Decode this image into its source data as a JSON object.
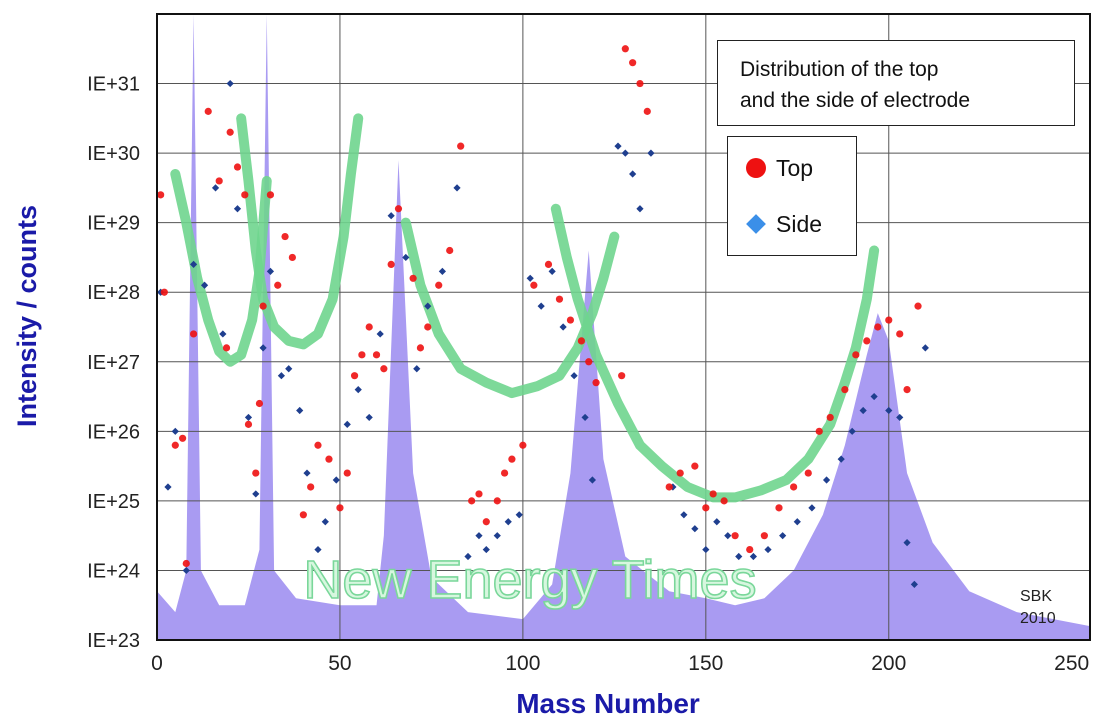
{
  "chart_data": {
    "type": "scatter",
    "title": "Distribution of the top and the side of electrode",
    "title_lines": [
      "Distribution of the top",
      "and the side of electrode"
    ],
    "xlabel": "Mass Number",
    "ylabel": "Intensity / counts",
    "xlim": [
      0,
      255
    ],
    "ylim_log10": [
      23,
      32
    ],
    "log_scale_y": true,
    "grid": true,
    "legend_placement": "top-right",
    "x_ticks": [
      "0",
      "50",
      "100",
      "150",
      "200",
      "250"
    ],
    "y_ticks": [
      "IE+23",
      "IE+24",
      "IE+25",
      "IE+26",
      "IE+27",
      "IE+28",
      "IE+29",
      "IE+30",
      "IE+31"
    ],
    "watermark": "New Energy Times",
    "credit": [
      "SBK",
      "2010"
    ],
    "colors": {
      "top": "#ee1111",
      "side": "#1f3f8f",
      "side_legend": "#3b8fe8",
      "fill": "#a99bf2",
      "curve": "#6fd58e",
      "axis_label": "#1a1aa8"
    },
    "series": [
      {
        "name": "Top",
        "marker": "circle",
        "points": [
          [
            1,
            29.4
          ],
          [
            2,
            28
          ],
          [
            5,
            25.8
          ],
          [
            7,
            25.9
          ],
          [
            8,
            24.1
          ],
          [
            10,
            27.4
          ],
          [
            14,
            30.6
          ],
          [
            17,
            29.6
          ],
          [
            19,
            27.2
          ],
          [
            20,
            30.3
          ],
          [
            22,
            29.8
          ],
          [
            24,
            29.4
          ],
          [
            25,
            26.1
          ],
          [
            27,
            25.4
          ],
          [
            28,
            26.4
          ],
          [
            29,
            27.8
          ],
          [
            31,
            29.4
          ],
          [
            33,
            28.1
          ],
          [
            35,
            28.8
          ],
          [
            37,
            28.5
          ],
          [
            40,
            24.8
          ],
          [
            42,
            25.2
          ],
          [
            44,
            25.8
          ],
          [
            47,
            25.6
          ],
          [
            50,
            24.9
          ],
          [
            52,
            25.4
          ],
          [
            54,
            26.8
          ],
          [
            56,
            27.1
          ],
          [
            58,
            27.5
          ],
          [
            60,
            27.1
          ],
          [
            62,
            26.9
          ],
          [
            64,
            28.4
          ],
          [
            66,
            29.2
          ],
          [
            70,
            28.2
          ],
          [
            72,
            27.2
          ],
          [
            74,
            27.5
          ],
          [
            77,
            28.1
          ],
          [
            80,
            28.6
          ],
          [
            83,
            30.1
          ],
          [
            86,
            25
          ],
          [
            88,
            25.1
          ],
          [
            90,
            24.7
          ],
          [
            93,
            25
          ],
          [
            95,
            25.4
          ],
          [
            97,
            25.6
          ],
          [
            100,
            25.8
          ],
          [
            103,
            28.1
          ],
          [
            107,
            28.4
          ],
          [
            110,
            27.9
          ],
          [
            113,
            27.6
          ],
          [
            116,
            27.3
          ],
          [
            118,
            27
          ],
          [
            120,
            26.7
          ],
          [
            127,
            26.8
          ],
          [
            128,
            31.5
          ],
          [
            130,
            31.3
          ],
          [
            132,
            31
          ],
          [
            134,
            30.6
          ],
          [
            140,
            25.2
          ],
          [
            143,
            25.4
          ],
          [
            147,
            25.5
          ],
          [
            150,
            24.9
          ],
          [
            152,
            25.1
          ],
          [
            155,
            25
          ],
          [
            158,
            24.5
          ],
          [
            162,
            24.3
          ],
          [
            166,
            24.5
          ],
          [
            170,
            24.9
          ],
          [
            174,
            25.2
          ],
          [
            178,
            25.4
          ],
          [
            181,
            26
          ],
          [
            184,
            26.2
          ],
          [
            188,
            26.6
          ],
          [
            191,
            27.1
          ],
          [
            194,
            27.3
          ],
          [
            197,
            27.5
          ],
          [
            200,
            27.6
          ],
          [
            203,
            27.4
          ],
          [
            205,
            26.6
          ],
          [
            208,
            27.8
          ]
        ]
      },
      {
        "name": "Side",
        "marker": "diamond",
        "points": [
          [
            1,
            28
          ],
          [
            3,
            25.2
          ],
          [
            5,
            26
          ],
          [
            8,
            24
          ],
          [
            10,
            28.4
          ],
          [
            13,
            28.1
          ],
          [
            16,
            29.5
          ],
          [
            18,
            27.4
          ],
          [
            20,
            31
          ],
          [
            22,
            29.2
          ],
          [
            25,
            26.2
          ],
          [
            27,
            25.1
          ],
          [
            29,
            27.2
          ],
          [
            31,
            28.3
          ],
          [
            34,
            26.8
          ],
          [
            36,
            26.9
          ],
          [
            39,
            26.3
          ],
          [
            41,
            25.4
          ],
          [
            44,
            24.3
          ],
          [
            46,
            24.7
          ],
          [
            49,
            25.3
          ],
          [
            52,
            26.1
          ],
          [
            55,
            26.6
          ],
          [
            58,
            26.2
          ],
          [
            61,
            27.4
          ],
          [
            64,
            29.1
          ],
          [
            68,
            28.5
          ],
          [
            71,
            26.9
          ],
          [
            74,
            27.8
          ],
          [
            78,
            28.3
          ],
          [
            82,
            29.5
          ],
          [
            85,
            24.2
          ],
          [
            88,
            24.5
          ],
          [
            90,
            24.3
          ],
          [
            93,
            24.5
          ],
          [
            96,
            24.7
          ],
          [
            99,
            24.8
          ],
          [
            102,
            28.2
          ],
          [
            105,
            27.8
          ],
          [
            108,
            28.3
          ],
          [
            111,
            27.5
          ],
          [
            114,
            26.8
          ],
          [
            117,
            26.2
          ],
          [
            119,
            25.3
          ],
          [
            126,
            30.1
          ],
          [
            128,
            30
          ],
          [
            130,
            29.7
          ],
          [
            132,
            29.2
          ],
          [
            135,
            30
          ],
          [
            141,
            25.2
          ],
          [
            144,
            24.8
          ],
          [
            147,
            24.6
          ],
          [
            150,
            24.3
          ],
          [
            153,
            24.7
          ],
          [
            156,
            24.5
          ],
          [
            159,
            24.2
          ],
          [
            163,
            24.2
          ],
          [
            167,
            24.3
          ],
          [
            171,
            24.5
          ],
          [
            175,
            24.7
          ],
          [
            179,
            24.9
          ],
          [
            183,
            25.3
          ],
          [
            187,
            25.6
          ],
          [
            190,
            26
          ],
          [
            193,
            26.3
          ],
          [
            196,
            26.5
          ],
          [
            200,
            26.3
          ],
          [
            203,
            26.2
          ],
          [
            205,
            24.4
          ],
          [
            207,
            23.8
          ],
          [
            210,
            27.2
          ]
        ]
      },
      {
        "name": "",
        "type": "area",
        "points": [
          [
            0,
            23.7
          ],
          [
            5,
            23.4
          ],
          [
            8,
            24
          ],
          [
            10,
            32
          ],
          [
            12,
            24
          ],
          [
            17,
            23.5
          ],
          [
            24,
            23.5
          ],
          [
            28,
            24.3
          ],
          [
            30,
            32
          ],
          [
            32,
            24
          ],
          [
            38,
            23.6
          ],
          [
            50,
            23.5
          ],
          [
            60,
            23.5
          ],
          [
            62,
            24.5
          ],
          [
            66,
            29.9
          ],
          [
            70,
            25.4
          ],
          [
            75,
            23.9
          ],
          [
            85,
            23.4
          ],
          [
            100,
            23.3
          ],
          [
            108,
            23.8
          ],
          [
            113,
            25.4
          ],
          [
            118,
            28.6
          ],
          [
            122,
            25.6
          ],
          [
            128,
            24.2
          ],
          [
            140,
            23.7
          ],
          [
            150,
            23.6
          ],
          [
            158,
            23.5
          ],
          [
            166,
            23.6
          ],
          [
            174,
            24
          ],
          [
            182,
            24.8
          ],
          [
            188,
            25.8
          ],
          [
            194,
            27.1
          ],
          [
            197,
            27.7
          ],
          [
            200,
            27.3
          ],
          [
            205,
            25.4
          ],
          [
            212,
            24.4
          ],
          [
            222,
            23.7
          ],
          [
            235,
            23.4
          ],
          [
            245,
            23.3
          ],
          [
            255,
            23.2
          ]
        ]
      },
      {
        "name": "",
        "type": "curve",
        "segments": [
          [
            [
              5,
              29.7
            ],
            [
              8,
              29
            ],
            [
              11,
              28.2
            ],
            [
              14,
              27.6
            ],
            [
              17,
              27.15
            ],
            [
              20,
              27
            ],
            [
              23,
              27.1
            ],
            [
              26,
              27.6
            ],
            [
              28,
              28.3
            ],
            [
              30,
              29.6
            ]
          ],
          [
            [
              23,
              30.5
            ],
            [
              25,
              29.6
            ],
            [
              27,
              28.6
            ],
            [
              29,
              27.9
            ],
            [
              32,
              27.5
            ],
            [
              36,
              27.3
            ],
            [
              40,
              27.25
            ],
            [
              44,
              27.4
            ],
            [
              48,
              27.9
            ],
            [
              51,
              28.8
            ],
            [
              53,
              29.7
            ],
            [
              55,
              30.5
            ]
          ],
          [
            [
              68,
              29
            ],
            [
              72,
              28.1
            ],
            [
              77,
              27.4
            ],
            [
              83,
              26.9
            ],
            [
              90,
              26.7
            ],
            [
              97,
              26.55
            ],
            [
              104,
              26.65
            ],
            [
              110,
              26.8
            ],
            [
              115,
              27.2
            ],
            [
              119,
              27.7
            ],
            [
              122,
              28.2
            ],
            [
              125,
              28.8
            ]
          ],
          [
            [
              109,
              29.2
            ],
            [
              112,
              28.5
            ],
            [
              115,
              27.9
            ],
            [
              120,
              27.1
            ],
            [
              126,
              26.4
            ],
            [
              132,
              25.8
            ],
            [
              138,
              25.5
            ],
            [
              145,
              25.2
            ],
            [
              152,
              25.05
            ],
            [
              158,
              25.05
            ],
            [
              165,
              25.15
            ],
            [
              172,
              25.3
            ],
            [
              178,
              25.6
            ],
            [
              184,
              26.1
            ],
            [
              188,
              26.7
            ],
            [
              191,
              27.2
            ],
            [
              194,
              27.9
            ],
            [
              196,
              28.6
            ]
          ]
        ]
      }
    ]
  }
}
